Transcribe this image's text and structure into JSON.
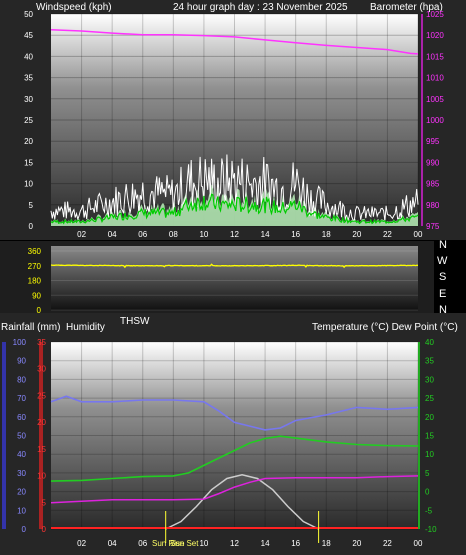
{
  "header": {
    "left_label": "Windspeed (kph)",
    "center_label": "24 hour graph day : 23 November 2025",
    "right_label": "Barometer (hpa)"
  },
  "direction_compass": [
    "N",
    "W",
    "S",
    "E",
    "N"
  ],
  "bottom_header": {
    "left1": "Rainfall (mm)",
    "left2": "Humidity",
    "mid": "THSW",
    "right": "Temperature (°C) Dew Point (°C)"
  },
  "sun_labels": {
    "sunrise": "Sun Rise",
    "sunset": "Sun Set"
  },
  "colors": {
    "wind": "#ffffff",
    "wind_avg": "#00cc00",
    "wind_fill": "#b8f0b8",
    "barometer": "#ff33ff",
    "direction": "#ffff00",
    "humidity": "#7777ee",
    "temperature": "#22cc22",
    "dew_point": "#dd22dd",
    "sun": "#cccccc",
    "rain": "#ff2222"
  },
  "chart_data": [
    {
      "type": "line",
      "name": "wind-barometer",
      "x_ticks": [
        "02",
        "04",
        "06",
        "08",
        "10",
        "12",
        "14",
        "16",
        "18",
        "20",
        "22",
        "00"
      ],
      "y_left": {
        "label": "Windspeed (kph)",
        "ylim": [
          0,
          50
        ],
        "ticks": [
          0,
          5,
          10,
          15,
          20,
          25,
          30,
          35,
          40,
          45,
          50
        ]
      },
      "y_right": {
        "label": "Barometer (hpa)",
        "ylim": [
          975,
          1025
        ],
        "ticks": [
          975,
          980,
          985,
          990,
          995,
          1000,
          1005,
          1010,
          1015,
          1020,
          1025
        ]
      },
      "series": [
        {
          "name": "Windspeed",
          "hours": [
            0,
            2,
            4,
            6,
            8,
            9,
            10,
            11,
            12,
            13,
            14,
            15,
            16,
            17,
            18,
            20,
            22,
            24
          ],
          "gust": [
            5,
            5,
            8,
            11,
            10,
            14,
            15,
            14,
            15,
            14,
            14,
            12,
            14,
            9,
            7,
            4,
            4,
            8
          ],
          "avg": [
            1,
            1,
            2,
            3,
            3,
            5,
            6,
            5,
            5,
            5,
            5,
            4,
            5,
            3,
            2,
            1,
            1,
            2
          ]
        },
        {
          "name": "Barometer",
          "hours": [
            0,
            2,
            4,
            6,
            8,
            10,
            12,
            14,
            16,
            18,
            20,
            22,
            23.5,
            24
          ],
          "values": [
            1021.3,
            1021,
            1020.5,
            1020.1,
            1020.1,
            1019.9,
            1019.6,
            1018.9,
            1018.2,
            1017.6,
            1017.1,
            1016.6,
            1015.7,
            1015.6
          ]
        }
      ]
    },
    {
      "type": "line",
      "name": "wind-direction",
      "y_left": {
        "ylim": [
          0,
          360
        ],
        "ticks": [
          0,
          90,
          180,
          270,
          360
        ]
      },
      "series": [
        {
          "name": "Wind direction",
          "hours": [
            0,
            2,
            4,
            6,
            8,
            10,
            12,
            14,
            16,
            18,
            20,
            22,
            24
          ],
          "values": [
            274,
            272,
            271,
            270,
            271,
            270,
            270,
            271,
            272,
            270,
            270,
            271,
            272
          ]
        }
      ]
    },
    {
      "type": "line",
      "name": "temperature-humidity",
      "x_ticks": [
        "02",
        "04",
        "06",
        "08",
        "10",
        "12",
        "14",
        "16",
        "18",
        "20",
        "22",
        "00"
      ],
      "y_left_humidity": {
        "label": "Humidity",
        "ylim": [
          0,
          100
        ],
        "ticks": [
          0,
          10,
          20,
          30,
          40,
          50,
          60,
          70,
          80,
          90,
          100
        ]
      },
      "y_left_rain": {
        "label": "Rainfall (mm)",
        "ylim": [
          0,
          35
        ],
        "ticks": [
          0,
          5,
          10,
          15,
          20,
          25,
          30,
          35
        ]
      },
      "y_right": {
        "label": "Temperature (°C) Dew Point (°C)",
        "ylim": [
          -10,
          40
        ],
        "ticks": [
          -10,
          -5,
          0,
          5,
          10,
          15,
          20,
          25,
          30,
          35,
          40
        ]
      },
      "series": [
        {
          "name": "Humidity",
          "hours": [
            0,
            1,
            2,
            4,
            6,
            8,
            10,
            11,
            12,
            13,
            14,
            15,
            16,
            18,
            20,
            22,
            24
          ],
          "values": [
            68,
            71,
            68,
            68,
            69,
            69,
            68,
            63,
            57,
            55,
            53,
            54,
            58,
            61,
            65,
            64,
            65
          ]
        },
        {
          "name": "Temperature",
          "hours": [
            0,
            2,
            4,
            6,
            8,
            9,
            10,
            11,
            12,
            13,
            14,
            15,
            16,
            18,
            20,
            22,
            24
          ],
          "values": [
            2.8,
            3.0,
            3.5,
            4.0,
            4.2,
            5.0,
            7.0,
            9.0,
            11.0,
            13.0,
            14.2,
            14.8,
            14.3,
            13.3,
            12.6,
            12.3,
            12.2
          ]
        },
        {
          "name": "Dew Point",
          "hours": [
            0,
            2,
            4,
            6,
            8,
            10,
            11,
            12,
            13,
            14,
            16,
            18,
            20,
            22,
            24
          ],
          "values": [
            -3.0,
            -2.6,
            -2.2,
            -2.2,
            -2.2,
            -2.0,
            -0.5,
            1.2,
            2.5,
            3.5,
            3.7,
            3.7,
            3.7,
            4.0,
            4.2
          ]
        },
        {
          "name": "Sun",
          "hours": [
            7.5,
            8.5,
            9.5,
            10.5,
            11.5,
            12.5,
            13.5,
            14.5,
            15.5,
            16.5,
            17.5
          ],
          "values": [
            -10,
            -8,
            -4,
            0.5,
            3.5,
            4.5,
            3.5,
            0.5,
            -4,
            -8,
            -10
          ]
        }
      ],
      "rainfall": 0
    }
  ]
}
